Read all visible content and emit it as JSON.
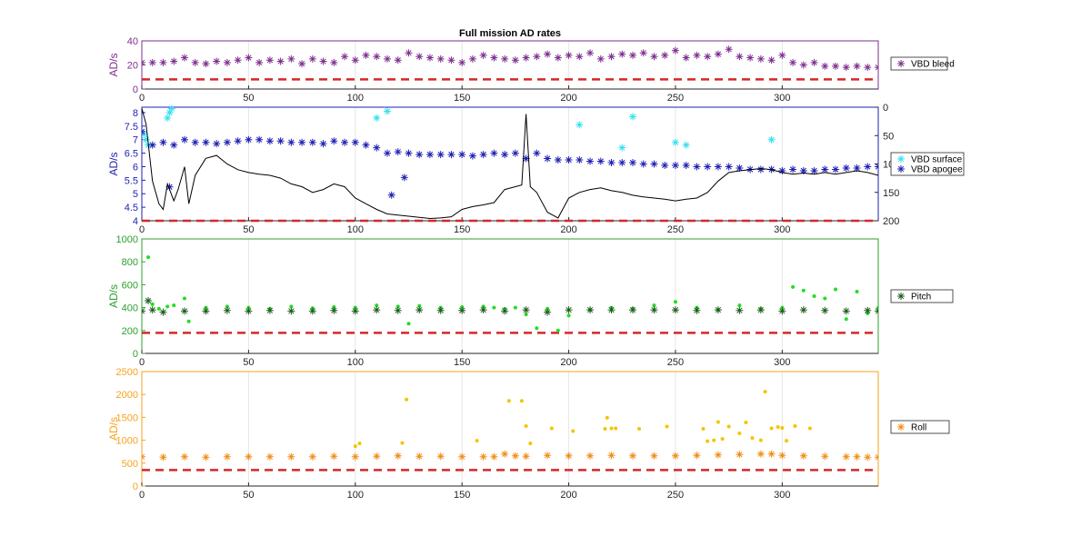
{
  "chart_data": [
    {
      "type": "scatter",
      "title": "Full mission AD rates",
      "ylabel": "AD/s",
      "xlim": [
        0,
        345
      ],
      "ylim": [
        0,
        40
      ],
      "xticks": [
        0,
        50,
        100,
        150,
        200,
        250,
        300
      ],
      "yticks": [
        0,
        20,
        40
      ],
      "color": "#7e2f8e",
      "series": [
        {
          "name": "VBD bleed",
          "marker": "*",
          "color": "#7e2f8e",
          "x": [
            0,
            5,
            10,
            15,
            20,
            25,
            30,
            35,
            40,
            45,
            50,
            55,
            60,
            65,
            70,
            75,
            80,
            85,
            90,
            95,
            100,
            105,
            110,
            115,
            120,
            125,
            130,
            135,
            140,
            145,
            150,
            155,
            160,
            165,
            170,
            175,
            180,
            185,
            190,
            195,
            200,
            205,
            210,
            215,
            220,
            225,
            230,
            235,
            240,
            245,
            250,
            255,
            260,
            265,
            270,
            275,
            280,
            285,
            290,
            295,
            300,
            305,
            310,
            315,
            320,
            325,
            330,
            335,
            340,
            345
          ],
          "y": [
            22,
            22,
            22,
            23,
            26,
            22,
            21,
            23,
            22,
            24,
            26,
            22,
            24,
            23,
            25,
            21,
            25,
            23,
            22,
            27,
            24,
            28,
            27,
            25,
            24,
            30,
            27,
            26,
            25,
            24,
            22,
            25,
            28,
            26,
            25,
            24,
            26,
            27,
            29,
            26,
            28,
            27,
            30,
            25,
            27,
            29,
            28,
            30,
            27,
            28,
            32,
            26,
            28,
            27,
            29,
            33,
            27,
            26,
            25,
            24,
            28,
            22,
            20,
            22,
            19,
            19,
            18,
            19,
            18,
            18
          ]
        }
      ],
      "reference_line": {
        "y": 8,
        "color": "#d62728",
        "style": "dashed"
      },
      "legend": "outside-right"
    },
    {
      "type": "scatter",
      "ylabel": "AD/s",
      "xlim": [
        0,
        345
      ],
      "ylim": [
        4,
        8.2
      ],
      "xticks": [
        0,
        50,
        100,
        150,
        200,
        250,
        300
      ],
      "yticks": [
        4,
        4.5,
        5,
        5.5,
        6,
        6.5,
        7,
        7.5,
        8
      ],
      "y2lim": [
        0,
        200
      ],
      "y2ticks": [
        0,
        50,
        100,
        150,
        200
      ],
      "y2_reversed": true,
      "color": "#1f1fb4",
      "series": [
        {
          "name": "VBD surface",
          "marker": "*",
          "color": "#33e0f0",
          "x": [
            1,
            2,
            3,
            12,
            13,
            14,
            110,
            115,
            205,
            225,
            230,
            250,
            255,
            295
          ],
          "y": [
            7.2,
            7.0,
            6.8,
            7.8,
            8.0,
            8.15,
            7.8,
            8.05,
            7.55,
            6.7,
            7.85,
            6.9,
            6.8,
            7.0
          ]
        },
        {
          "name": "VBD apogee",
          "marker": "*",
          "color": "#1f1fb4",
          "x": [
            0,
            5,
            10,
            15,
            20,
            25,
            30,
            35,
            40,
            45,
            50,
            55,
            60,
            65,
            70,
            75,
            80,
            85,
            90,
            95,
            100,
            105,
            110,
            115,
            120,
            125,
            130,
            135,
            140,
            145,
            150,
            155,
            160,
            165,
            170,
            175,
            180,
            185,
            190,
            195,
            200,
            205,
            210,
            215,
            220,
            225,
            230,
            235,
            240,
            245,
            250,
            255,
            260,
            265,
            270,
            275,
            280,
            285,
            290,
            295,
            300,
            305,
            310,
            315,
            320,
            325,
            330,
            335,
            340,
            345,
            13,
            117,
            123
          ],
          "y": [
            7.3,
            6.8,
            6.9,
            6.8,
            7.0,
            6.9,
            6.9,
            6.85,
            6.9,
            6.95,
            7.0,
            7.0,
            6.95,
            6.95,
            6.9,
            6.9,
            6.9,
            6.85,
            6.95,
            6.9,
            6.9,
            6.8,
            6.7,
            6.5,
            6.55,
            6.5,
            6.45,
            6.45,
            6.45,
            6.45,
            6.45,
            6.4,
            6.45,
            6.5,
            6.45,
            6.5,
            6.3,
            6.5,
            6.3,
            6.25,
            6.25,
            6.25,
            6.2,
            6.2,
            6.15,
            6.15,
            6.15,
            6.1,
            6.1,
            6.05,
            6.05,
            6.05,
            6.0,
            6.0,
            6.0,
            6.0,
            5.95,
            5.9,
            5.9,
            5.9,
            5.85,
            5.9,
            5.85,
            5.85,
            5.9,
            5.9,
            5.95,
            5.95,
            6.0,
            6.0,
            5.25,
            4.95,
            5.6
          ]
        },
        {
          "name": "",
          "type": "line",
          "axis": "right",
          "color": "#000000",
          "x": [
            0,
            2,
            5,
            8,
            10,
            12,
            15,
            17,
            20,
            22,
            25,
            30,
            35,
            40,
            45,
            50,
            55,
            60,
            65,
            70,
            75,
            80,
            85,
            90,
            95,
            100,
            105,
            110,
            115,
            120,
            125,
            130,
            135,
            140,
            145,
            150,
            155,
            160,
            165,
            170,
            175,
            178,
            180,
            182,
            185,
            190,
            195,
            200,
            205,
            210,
            215,
            220,
            225,
            230,
            235,
            240,
            245,
            250,
            255,
            260,
            265,
            270,
            275,
            280,
            285,
            290,
            295,
            300,
            305,
            310,
            315,
            320,
            325,
            330,
            335,
            340,
            345
          ],
          "y": [
            2,
            30,
            130,
            170,
            180,
            135,
            165,
            145,
            105,
            170,
            120,
            90,
            85,
            100,
            110,
            115,
            118,
            120,
            125,
            135,
            140,
            150,
            145,
            135,
            140,
            160,
            170,
            180,
            188,
            190,
            192,
            194,
            196,
            195,
            193,
            180,
            175,
            172,
            168,
            145,
            140,
            137,
            12,
            140,
            150,
            185,
            195,
            160,
            150,
            145,
            142,
            147,
            150,
            155,
            158,
            160,
            162,
            165,
            162,
            160,
            150,
            130,
            115,
            112,
            110,
            108,
            110,
            115,
            118,
            116,
            118,
            115,
            118,
            115,
            112,
            115,
            120
          ]
        }
      ],
      "reference_line": {
        "y": 4.0,
        "color": "#d62728",
        "style": "dashed"
      },
      "legend": "outside-right"
    },
    {
      "type": "scatter",
      "ylabel": "AD/s",
      "xlim": [
        0,
        345
      ],
      "ylim": [
        0,
        1000
      ],
      "xticks": [
        0,
        50,
        100,
        150,
        200,
        250,
        300
      ],
      "yticks": [
        0,
        200,
        400,
        600,
        800,
        1000
      ],
      "color": "#2ca02c",
      "series": [
        {
          "name": "",
          "marker": ".",
          "color": "#22dd22",
          "x": [
            3,
            5,
            8,
            12,
            15,
            20,
            22,
            30,
            40,
            50,
            60,
            70,
            80,
            90,
            100,
            110,
            120,
            125,
            130,
            140,
            150,
            160,
            165,
            170,
            175,
            180,
            185,
            190,
            195,
            200,
            210,
            220,
            230,
            240,
            250,
            260,
            270,
            280,
            290,
            300,
            305,
            310,
            315,
            320,
            325,
            330,
            335,
            340,
            345
          ],
          "y": [
            840,
            430,
            390,
            410,
            420,
            480,
            280,
            400,
            410,
            400,
            390,
            410,
            395,
            405,
            400,
            420,
            410,
            260,
            415,
            400,
            405,
            410,
            400,
            390,
            400,
            340,
            220,
            390,
            200,
            330,
            380,
            400,
            390,
            420,
            450,
            400,
            380,
            420,
            390,
            400,
            580,
            550,
            500,
            480,
            560,
            300,
            540,
            350,
            400
          ]
        },
        {
          "name": "Pitch",
          "marker": "*",
          "color": "#1a5c1a",
          "x": [
            0,
            3,
            5,
            10,
            20,
            30,
            40,
            50,
            60,
            70,
            80,
            90,
            100,
            110,
            120,
            130,
            140,
            150,
            160,
            170,
            180,
            190,
            200,
            210,
            220,
            230,
            240,
            250,
            260,
            270,
            280,
            290,
            300,
            310,
            320,
            330,
            340,
            345
          ],
          "y": [
            370,
            460,
            380,
            360,
            370,
            370,
            375,
            370,
            375,
            370,
            370,
            375,
            370,
            380,
            375,
            380,
            375,
            375,
            380,
            370,
            380,
            360,
            380,
            380,
            380,
            380,
            380,
            380,
            375,
            380,
            375,
            380,
            370,
            380,
            375,
            370,
            375,
            370
          ]
        }
      ],
      "reference_line": {
        "y": 180,
        "color": "#d62728",
        "style": "dashed"
      },
      "legend": "outside-right"
    },
    {
      "type": "scatter",
      "ylabel": "AD/s",
      "xlim": [
        0,
        345
      ],
      "ylim": [
        0,
        2500
      ],
      "xticks": [
        0,
        50,
        100,
        150,
        200,
        250,
        300
      ],
      "yticks": [
        0,
        500,
        1000,
        1500,
        2000,
        2500
      ],
      "color": "#f7a21c",
      "series": [
        {
          "name": "",
          "marker": ".",
          "color": "#f2c500",
          "x": [
            100,
            102,
            122,
            124,
            157,
            172,
            178,
            180,
            182,
            192,
            202,
            217,
            218,
            220,
            222,
            233,
            246,
            263,
            265,
            268,
            270,
            272,
            275,
            280,
            283,
            286,
            290,
            292,
            295,
            298,
            300,
            302,
            306,
            313
          ],
          "y": [
            870,
            930,
            940,
            1890,
            990,
            1860,
            1860,
            1310,
            930,
            1260,
            1200,
            1250,
            1490,
            1260,
            1260,
            1250,
            1300,
            1250,
            980,
            1000,
            1400,
            1030,
            1300,
            1150,
            1390,
            1050,
            1000,
            2060,
            1260,
            1290,
            1270,
            990,
            1310,
            1260
          ]
        },
        {
          "name": "Roll",
          "marker": "*",
          "color": "#f08c10",
          "x": [
            0,
            10,
            20,
            30,
            40,
            50,
            60,
            70,
            80,
            90,
            100,
            110,
            120,
            130,
            140,
            150,
            160,
            165,
            170,
            175,
            180,
            190,
            200,
            210,
            220,
            230,
            240,
            250,
            260,
            270,
            280,
            290,
            295,
            300,
            310,
            320,
            330,
            335,
            340,
            345
          ],
          "y": [
            640,
            630,
            640,
            630,
            640,
            640,
            640,
            640,
            640,
            650,
            640,
            650,
            660,
            650,
            650,
            640,
            640,
            640,
            700,
            660,
            650,
            670,
            660,
            660,
            670,
            660,
            660,
            660,
            670,
            680,
            690,
            700,
            700,
            670,
            660,
            650,
            640,
            640,
            630,
            630
          ]
        }
      ],
      "reference_line": {
        "y": 350,
        "color": "#d62728",
        "style": "dashed"
      },
      "legend": "outside-right"
    }
  ]
}
